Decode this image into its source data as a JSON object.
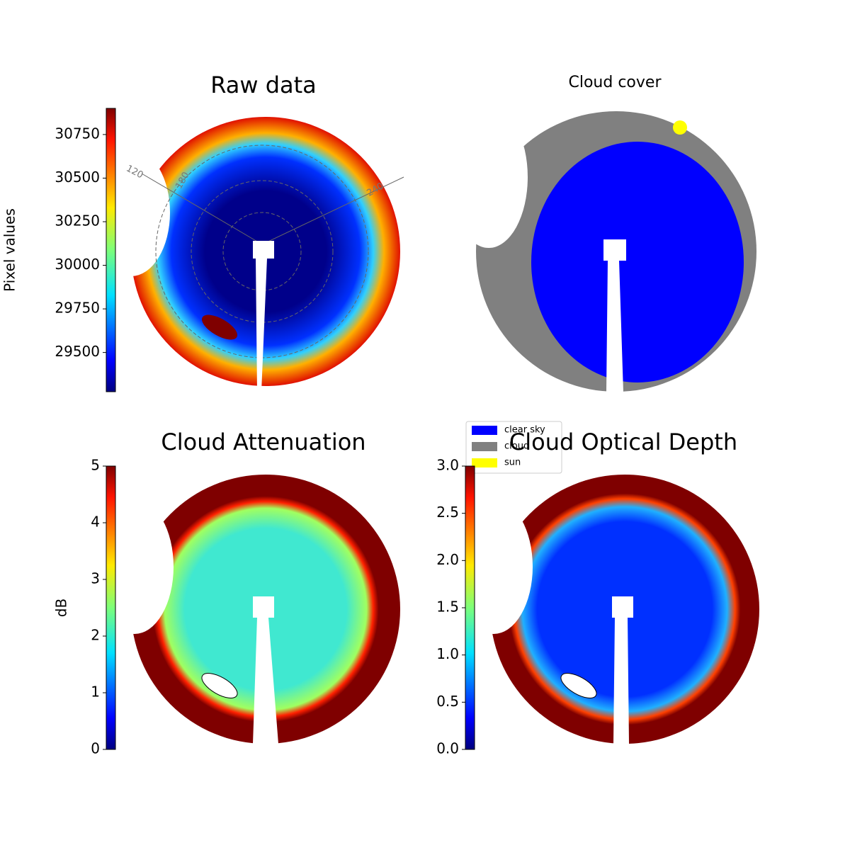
{
  "chart_data": [
    {
      "type": "image",
      "title": "Raw data",
      "colorbar": {
        "label": "Pixel values",
        "colormap": "jet",
        "ylim": [
          29275,
          30900
        ],
        "yticks": [
          29500,
          29750,
          30000,
          30250,
          30500,
          30750
        ]
      },
      "annotations": [
        "120",
        "180",
        "240"
      ]
    },
    {
      "type": "image",
      "title": "Cloud cover",
      "series": [
        {
          "name": "clear sky",
          "color": "#0000ff"
        },
        {
          "name": "cloud",
          "color": "#808080"
        },
        {
          "name": "sun",
          "color": "#ffff00"
        }
      ]
    },
    {
      "type": "image",
      "title": "Cloud Attenuation",
      "colorbar": {
        "label": "dB",
        "colormap": "jet",
        "ylim": [
          0,
          5
        ],
        "yticks": [
          0,
          1,
          2,
          3,
          4,
          5
        ]
      }
    },
    {
      "type": "image",
      "title": "Cloud Optical Depth",
      "colorbar": {
        "colormap": "jet",
        "ylim": [
          0,
          3
        ],
        "yticks": [
          {
            "value": 0,
            "label": "0.0"
          },
          {
            "value": 0.5,
            "label": "0.5"
          },
          {
            "value": 1,
            "label": "1.0"
          },
          {
            "value": 1.5,
            "label": "1.5"
          },
          {
            "value": 2,
            "label": "2.0"
          },
          {
            "value": 2.5,
            "label": "2.5"
          },
          {
            "value": 3,
            "label": "3.0"
          }
        ]
      }
    }
  ]
}
